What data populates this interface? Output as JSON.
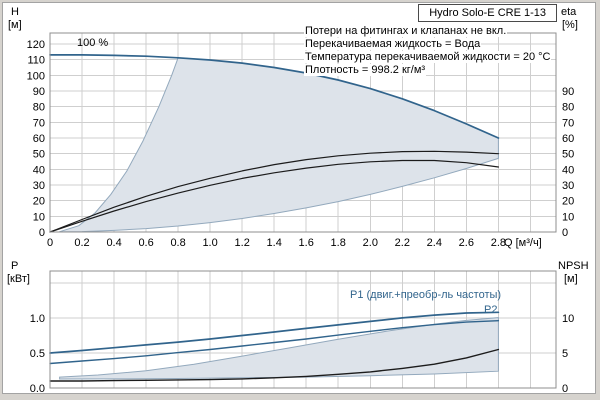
{
  "colors": {
    "blue": "#31648c",
    "black": "#1c1c1c",
    "grid": "#cfcfcf",
    "frame": "#8f8f8f",
    "envelope_fill": "#dde3ea",
    "envelope_stroke": "#93a9bd",
    "blue_text": "#31648c"
  },
  "chart_data": [
    {
      "type": "line",
      "title": "Hydro Solo-E CRE 1-13",
      "annotations": [
        "Потери на фитингах и клапанах не вкл.",
        "Перекачиваемая жидкость = Вода",
        "Температура перекачиваемой жидкости = 20 °C",
        "Плотность = 998.2 кг/м³"
      ],
      "speed_label": "100 %",
      "xlabel": "Q [м³/ч]",
      "ylabel_left": "H",
      "ylabel_left_unit": "[м]",
      "ylabel_right": "eta",
      "ylabel_right_unit": "[%]",
      "xlim": [
        0,
        3.16
      ],
      "ylim_left": [
        0,
        127
      ],
      "ylim_right": [
        0,
        127
      ],
      "x_grid": [
        0.2,
        0.4,
        0.6,
        0.8,
        1.0,
        1.2,
        1.4,
        1.6,
        1.8,
        2.0,
        2.2,
        2.4,
        2.6,
        2.8,
        3.0
      ],
      "y_grid": [
        10,
        20,
        30,
        40,
        50,
        60,
        70,
        80,
        90,
        100,
        110,
        120
      ],
      "x_ticks": {
        "values": [
          0,
          0.2,
          0.4,
          0.6,
          0.8,
          1.0,
          1.2,
          1.4,
          1.6,
          1.8,
          2.0,
          2.2,
          2.4,
          2.6,
          2.8
        ],
        "labels": [
          "0",
          "0.2",
          "0.4",
          "0.6",
          "0.8",
          "1.0",
          "1.2",
          "1.4",
          "1.6",
          "1.8",
          "2.0",
          "2.2",
          "2.4",
          "2.6",
          "2.8"
        ]
      },
      "y_ticks_left": {
        "values": [
          0,
          10,
          20,
          30,
          40,
          50,
          60,
          70,
          80,
          90,
          100,
          110,
          120
        ],
        "labels": [
          "0",
          "10",
          "20",
          "30",
          "40",
          "50",
          "60",
          "70",
          "80",
          "90",
          "100",
          "110",
          "120"
        ]
      },
      "y_ticks_right": {
        "values": [
          0,
          10,
          20,
          30,
          40,
          50,
          60,
          70,
          80,
          90
        ],
        "labels": [
          "0",
          "10",
          "20",
          "30",
          "40",
          "50",
          "60",
          "70",
          "80",
          "90"
        ]
      },
      "envelope": [
        [
          0.06,
          0.2
        ],
        [
          0.18,
          4
        ],
        [
          0.28,
          12
        ],
        [
          0.38,
          24
        ],
        [
          0.48,
          39
        ],
        [
          0.58,
          58
        ],
        [
          0.68,
          80
        ],
        [
          0.76,
          100
        ],
        [
          0.8,
          111.2
        ],
        [
          1.0,
          109.8
        ],
        [
          1.2,
          107.8
        ],
        [
          1.4,
          105
        ],
        [
          1.6,
          101.5
        ],
        [
          1.8,
          97
        ],
        [
          2.0,
          91.5
        ],
        [
          2.2,
          85
        ],
        [
          2.4,
          77.5
        ],
        [
          2.6,
          69
        ],
        [
          2.8,
          60
        ],
        [
          2.8,
          47
        ],
        [
          2.6,
          40.5
        ],
        [
          2.4,
          34.6
        ],
        [
          2.2,
          29.1
        ],
        [
          2.0,
          24
        ],
        [
          1.8,
          19.4
        ],
        [
          1.6,
          15.4
        ],
        [
          1.4,
          11.8
        ],
        [
          1.2,
          8.6
        ],
        [
          1.0,
          6
        ],
        [
          0.8,
          3.8
        ],
        [
          0.6,
          2.2
        ],
        [
          0.4,
          1
        ],
        [
          0.2,
          0.25
        ],
        [
          0.06,
          0.05
        ]
      ],
      "series": [
        {
          "name": "head-100pct",
          "label": "100 %",
          "color": "blue",
          "axis": "left",
          "width": 1.7,
          "x": [
            0,
            0.2,
            0.4,
            0.6,
            0.8,
            1.0,
            1.2,
            1.4,
            1.6,
            1.8,
            2.0,
            2.2,
            2.4,
            2.6,
            2.8
          ],
          "y": [
            113,
            113,
            112.7,
            112.2,
            111.2,
            109.8,
            107.8,
            105,
            101.5,
            97,
            91.5,
            85,
            77.5,
            69,
            60
          ]
        },
        {
          "name": "eta-upper",
          "label": "",
          "color": "black",
          "axis": "left",
          "width": 1.2,
          "x": [
            0,
            0.2,
            0.4,
            0.6,
            0.8,
            1.0,
            1.2,
            1.4,
            1.6,
            1.8,
            2.0,
            2.2,
            2.4,
            2.6,
            2.8
          ],
          "y": [
            0,
            8,
            15.8,
            22.8,
            29,
            34.3,
            39,
            43,
            46.2,
            48.6,
            50.3,
            51.3,
            51.5,
            51,
            50
          ]
        },
        {
          "name": "eta-lower",
          "label": "",
          "color": "black",
          "axis": "left",
          "width": 1.2,
          "x": [
            0,
            0.2,
            0.4,
            0.6,
            0.8,
            1.0,
            1.2,
            1.4,
            1.6,
            1.8,
            2.0,
            2.2,
            2.4,
            2.6,
            2.8
          ],
          "y": [
            0,
            6.8,
            13.4,
            19.4,
            24.8,
            29.8,
            34.2,
            37.8,
            40.8,
            43.2,
            44.8,
            45.6,
            45.6,
            44.2,
            41.5
          ]
        }
      ]
    },
    {
      "type": "line",
      "title": "",
      "xlabel": "",
      "ylabel_left": "P",
      "ylabel_left_unit": "[кВт]",
      "ylabel_right": "NPSH",
      "ylabel_right_unit": "[м]",
      "xlim": [
        0,
        3.16
      ],
      "ylim_left": [
        0,
        1.67
      ],
      "ylim_right": [
        0,
        16.7
      ],
      "x_grid": [
        0.2,
        0.4,
        0.6,
        0.8,
        1.0,
        1.2,
        1.4,
        1.6,
        1.8,
        2.0,
        2.2,
        2.4,
        2.6,
        2.8,
        3.0
      ],
      "y_grid": [
        0.5,
        1.0,
        1.5
      ],
      "x_ticks": {
        "values": [],
        "labels": []
      },
      "y_ticks_left": {
        "values": [
          0,
          0.5,
          1.0
        ],
        "labels": [
          "0.0",
          "0.5",
          "1.0"
        ]
      },
      "y_ticks_right": {
        "values": [
          0,
          5,
          10
        ],
        "labels": [
          "0",
          "5",
          "10"
        ]
      },
      "envelope": [
        [
          0.06,
          0.155
        ],
        [
          0.3,
          0.185
        ],
        [
          0.6,
          0.245
        ],
        [
          0.9,
          0.34
        ],
        [
          1.2,
          0.455
        ],
        [
          1.5,
          0.575
        ],
        [
          1.8,
          0.695
        ],
        [
          2.1,
          0.81
        ],
        [
          2.4,
          0.91
        ],
        [
          2.6,
          0.965
        ],
        [
          2.8,
          1.005
        ],
        [
          2.8,
          0.24
        ],
        [
          2.4,
          0.2
        ],
        [
          2.0,
          0.175
        ],
        [
          1.6,
          0.155
        ],
        [
          1.2,
          0.145
        ],
        [
          0.8,
          0.135
        ],
        [
          0.4,
          0.13
        ],
        [
          0.06,
          0.128
        ]
      ],
      "series": [
        {
          "name": "p1",
          "label": "P1 (двиг.+преобр-ль частоты)",
          "color": "blue",
          "axis": "left",
          "width": 1.7,
          "x": [
            0,
            0.2,
            0.4,
            0.6,
            0.8,
            1.0,
            1.2,
            1.4,
            1.6,
            1.8,
            2.0,
            2.2,
            2.4,
            2.6,
            2.8
          ],
          "y": [
            0.5,
            0.535,
            0.575,
            0.615,
            0.655,
            0.7,
            0.75,
            0.8,
            0.85,
            0.9,
            0.95,
            1.0,
            1.04,
            1.07,
            1.08
          ]
        },
        {
          "name": "p2",
          "label": "P2",
          "color": "blue",
          "axis": "left",
          "width": 1.4,
          "x": [
            0,
            0.2,
            0.4,
            0.6,
            0.8,
            1.0,
            1.2,
            1.4,
            1.6,
            1.8,
            2.0,
            2.2,
            2.4,
            2.6,
            2.8
          ],
          "y": [
            0.35,
            0.385,
            0.42,
            0.46,
            0.505,
            0.55,
            0.6,
            0.65,
            0.7,
            0.755,
            0.81,
            0.86,
            0.905,
            0.94,
            0.96
          ]
        },
        {
          "name": "npsh",
          "label": "",
          "color": "black",
          "axis": "right",
          "width": 1.4,
          "x": [
            0,
            0.2,
            0.4,
            0.6,
            0.8,
            1.0,
            1.2,
            1.4,
            1.6,
            1.8,
            2.0,
            2.2,
            2.4,
            2.6,
            2.8
          ],
          "y": [
            1.0,
            1.0,
            1.05,
            1.1,
            1.15,
            1.2,
            1.3,
            1.45,
            1.65,
            1.95,
            2.3,
            2.8,
            3.4,
            4.3,
            5.5
          ]
        }
      ]
    }
  ]
}
